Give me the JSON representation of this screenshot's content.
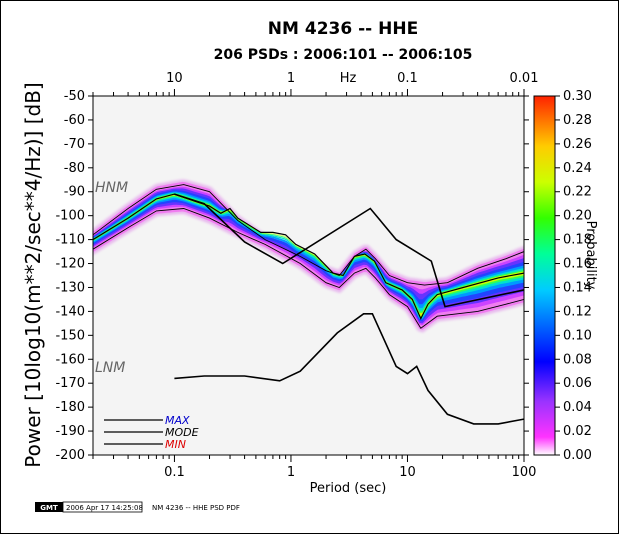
{
  "chart_data": {
    "type": "heatmap",
    "title": "NM 4236 -- HHE",
    "subtitle": "206 PSDs : 2006:101 -- 2006:105",
    "xlabel": "Period (sec)",
    "ylabel": "Power [10log10(m**2/sec**4/Hz)] [dB]",
    "top_axis_label": "Hz",
    "colorbar_label": "Probability",
    "x_scale": "log",
    "xlim": [
      0.02,
      100
    ],
    "ylim": [
      -200,
      -50
    ],
    "x_ticks": [
      "0.1",
      "1",
      "10",
      "100"
    ],
    "top_ticks": [
      "10",
      "1",
      "0.1",
      "0.01"
    ],
    "y_ticks": [
      "-50",
      "-60",
      "-70",
      "-80",
      "-90",
      "-100",
      "-110",
      "-120",
      "-130",
      "-140",
      "-150",
      "-160",
      "-170",
      "-180",
      "-190",
      "-200"
    ],
    "colorbar_ticks": [
      "0.30",
      "0.28",
      "0.26",
      "0.24",
      "0.22",
      "0.20",
      "0.18",
      "0.16",
      "0.14",
      "0.12",
      "0.10",
      "0.08",
      "0.06",
      "0.04",
      "0.02",
      "0.00"
    ],
    "colorbar_range": [
      0,
      0.3
    ],
    "noise_models": [
      {
        "label": "HNM",
        "points": [
          [
            0.1,
            -91
          ],
          [
            0.18,
            -95
          ],
          [
            0.4,
            -111
          ],
          [
            0.85,
            -120
          ],
          [
            4.8,
            -97
          ],
          [
            8,
            -110
          ],
          [
            16,
            -119
          ],
          [
            21,
            -138
          ],
          [
            100,
            -131
          ]
        ]
      },
      {
        "label": "LNM",
        "points": [
          [
            0.1,
            -168
          ],
          [
            0.18,
            -167
          ],
          [
            0.4,
            -167
          ],
          [
            0.8,
            -169
          ],
          [
            1.2,
            -165
          ],
          [
            2.5,
            -149
          ],
          [
            4.2,
            -141
          ],
          [
            5,
            -141
          ],
          [
            8,
            -163
          ],
          [
            10,
            -166
          ],
          [
            12,
            -163
          ],
          [
            15,
            -173
          ],
          [
            22,
            -183
          ],
          [
            37,
            -187
          ],
          [
            60,
            -187
          ],
          [
            100,
            -185
          ]
        ]
      }
    ],
    "series": [
      {
        "name": "MAX",
        "color": "#0000cc",
        "points": [
          [
            0.02,
            -108
          ],
          [
            0.04,
            -97
          ],
          [
            0.07,
            -89
          ],
          [
            0.12,
            -87
          ],
          [
            0.2,
            -90
          ],
          [
            0.35,
            -102
          ],
          [
            0.6,
            -110
          ],
          [
            1.2,
            -117
          ],
          [
            2,
            -123
          ],
          [
            2.6,
            -125
          ],
          [
            3.5,
            -117
          ],
          [
            4.4,
            -114
          ],
          [
            5.3,
            -118
          ],
          [
            7,
            -125
          ],
          [
            10,
            -128
          ],
          [
            14,
            -129
          ],
          [
            22,
            -128
          ],
          [
            40,
            -122
          ],
          [
            70,
            -118
          ],
          [
            100,
            -115
          ]
        ]
      },
      {
        "name": "MODE",
        "color": "#000000",
        "points": [
          [
            0.02,
            -110
          ],
          [
            0.04,
            -101
          ],
          [
            0.07,
            -93
          ],
          [
            0.1,
            -91
          ],
          [
            0.15,
            -94
          ],
          [
            0.2,
            -96
          ],
          [
            0.25,
            -99
          ],
          [
            0.3,
            -97
          ],
          [
            0.35,
            -101
          ],
          [
            0.55,
            -107
          ],
          [
            0.7,
            -107
          ],
          [
            0.9,
            -108
          ],
          [
            1.1,
            -112
          ],
          [
            1.6,
            -116
          ],
          [
            2.3,
            -124
          ],
          [
            2.8,
            -125
          ],
          [
            3.5,
            -117
          ],
          [
            4.3,
            -116
          ],
          [
            5.2,
            -119
          ],
          [
            6.5,
            -128
          ],
          [
            9,
            -131
          ],
          [
            11,
            -135
          ],
          [
            13,
            -143
          ],
          [
            15,
            -137
          ],
          [
            18,
            -133
          ],
          [
            30,
            -130
          ],
          [
            60,
            -126
          ],
          [
            100,
            -124
          ]
        ]
      },
      {
        "name": "MIN",
        "color": "#dd0000",
        "points": [
          [
            0.02,
            -114
          ],
          [
            0.04,
            -105
          ],
          [
            0.07,
            -98
          ],
          [
            0.12,
            -97
          ],
          [
            0.2,
            -101
          ],
          [
            0.35,
            -107
          ],
          [
            0.6,
            -112
          ],
          [
            1.2,
            -120
          ],
          [
            2,
            -128
          ],
          [
            2.6,
            -130
          ],
          [
            3.5,
            -124
          ],
          [
            4.4,
            -122
          ],
          [
            5.3,
            -126
          ],
          [
            7,
            -133
          ],
          [
            10,
            -138
          ],
          [
            13,
            -147
          ],
          [
            18,
            -142
          ],
          [
            40,
            -140
          ],
          [
            70,
            -137
          ],
          [
            100,
            -135
          ]
        ]
      }
    ]
  },
  "legend": {
    "max_label": "MAX",
    "mode_label": "MODE",
    "min_label": "MIN",
    "max_color": "#0000cc",
    "mode_color": "#000000",
    "min_color": "#dd0000"
  },
  "footer": {
    "logo_text": "GMT",
    "timestamp": "2006 Apr 17 14:25:08",
    "caption": "NM 4236 -- HHE PSD PDF"
  }
}
